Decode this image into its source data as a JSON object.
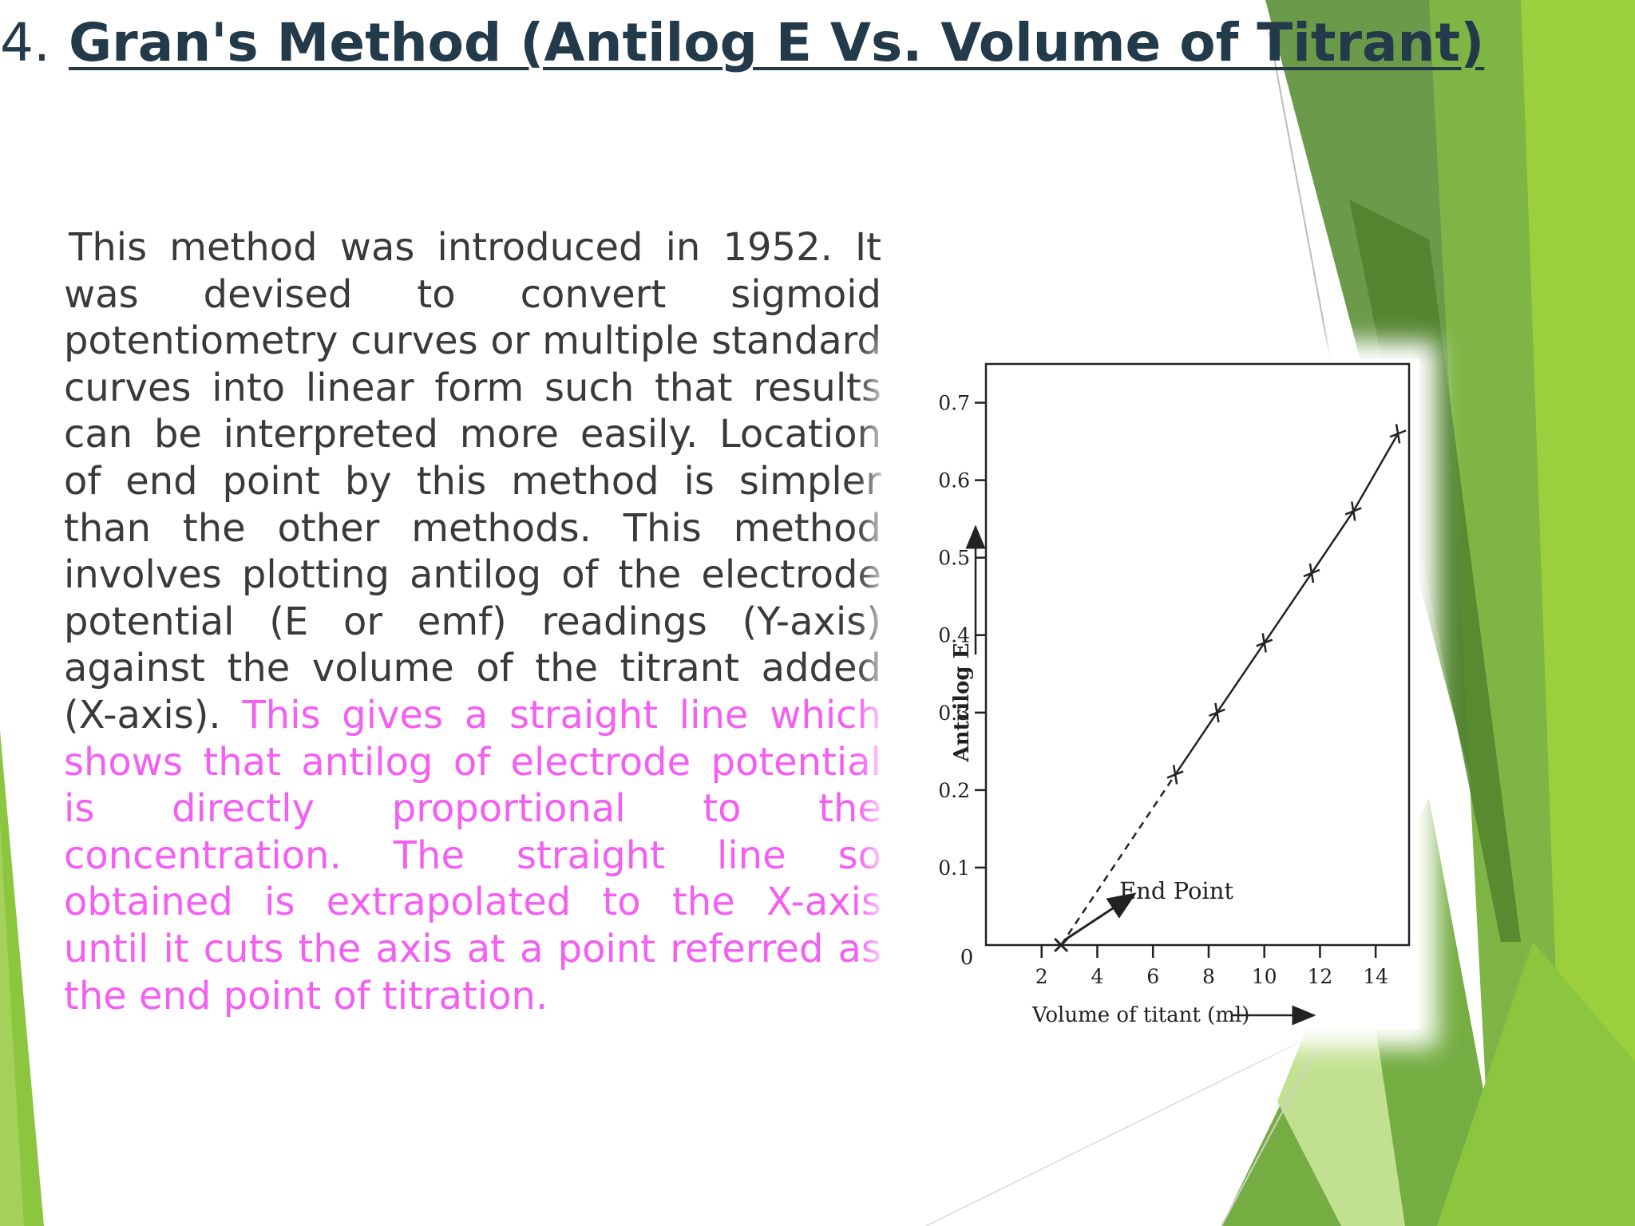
{
  "slide": {
    "title_number": "4.",
    "title_text": "Gran's Method (Antilog E Vs. Volume of Titrant)",
    "body_plain": "This method was introduced in 1952. It was devised to convert sigmoid potentiometry curves or multiple standard curves into linear form such that results can be interpreted more easily. Location of end point by this method is simpler than the other methods. This method involves plotting antilog of the electrode potential (E or emf) readings (Y-axis) against the volume of the titrant added (X-axis).",
    "body_highlight": "This gives a straight line which shows that antilog of electrode potential is directly proportional to the concentration. The straight line so obtained is extrapolated to the X-axis until it cuts the axis at a point referred as the end point of titration.",
    "colors": {
      "title": "#233a4a",
      "text": "#3a3a3a",
      "highlight": "#f35ef3",
      "accent_green": "#8cc63f"
    }
  },
  "chart_data": {
    "type": "line",
    "xlabel": "Volume of titant (ml)",
    "ylabel": "Antrilog E",
    "origin_label": "0",
    "x_ticks": [
      2,
      4,
      6,
      8,
      10,
      12,
      14
    ],
    "y_ticks": [
      "0.1",
      "0.2",
      "0.3",
      "0.4",
      "0.5",
      "0.6",
      "0.7"
    ],
    "xlim": [
      0,
      15.2
    ],
    "ylim": [
      0,
      0.75
    ],
    "annotation": "End Point",
    "end_point": [
      2.7,
      0
    ],
    "series": [
      {
        "x": [
          6.8,
          8.3,
          10.0,
          11.7,
          13.2,
          14.8
        ],
        "y": [
          0.22,
          0.3,
          0.39,
          0.48,
          0.56,
          0.66
        ]
      }
    ]
  }
}
